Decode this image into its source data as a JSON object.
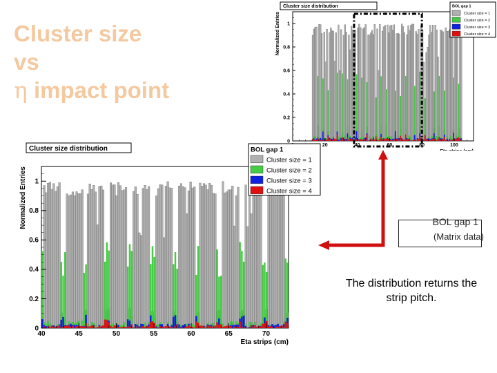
{
  "slide": {
    "title_line1": "Cluster size",
    "title_line2": "vs",
    "title_symbol": "η",
    "title_line3": " impact point",
    "note_line1": "BOL gap 1",
    "note_line2": "(Matrix data)",
    "caption": "The distribution returns the strip pitch.",
    "colors": {
      "title": "#f4c9a0",
      "arrow": "#d01010",
      "cs1": "#b0b0b0",
      "cs2": "#44cc44",
      "cs3": "#1020e0",
      "cs4": "#e01010"
    }
  },
  "chart_data": [
    {
      "id": "zoomed",
      "type": "bar",
      "title": "Cluster size distribution",
      "legend_title": "BOL gap 1",
      "legend_position": "top-right",
      "ylabel": "Normalized Entries",
      "xlabel": "Eta strips (cm)",
      "xlim": [
        40,
        73
      ],
      "ylim": [
        0,
        1.1
      ],
      "xticks": [
        "40",
        "45",
        "50",
        "55",
        "60",
        "65",
        "70"
      ],
      "yticks": [
        "0",
        "0.2",
        "0.4",
        "0.6",
        "0.8",
        "1"
      ],
      "strip_pitch_cm": 3.0,
      "strip_centers_cm": [
        41.5,
        44.5,
        47.5,
        50.5,
        53.5,
        56.5,
        59.5,
        62.5,
        65.5,
        68.5,
        71.5
      ],
      "series": [
        {
          "name": "Cluster size = 1",
          "plateau": 0.97,
          "dip": 0.6
        },
        {
          "name": "Cluster size = 2",
          "peak": 0.58
        },
        {
          "name": "Cluster size = 3",
          "peak": 0.09
        },
        {
          "name": "Cluster size = 4",
          "peak": 0.06
        }
      ]
    },
    {
      "id": "overview",
      "type": "bar",
      "title": "Cluster size distribution",
      "legend_title": "BOL gap 1",
      "legend_position": "top-right",
      "ylabel": "Normalized Entries",
      "xlabel": "Eta strips (cm)",
      "xlim": [
        0,
        112
      ],
      "ylim": [
        0,
        1.1
      ],
      "xticks": [
        "0",
        "20",
        "40",
        "60",
        "80",
        "100"
      ],
      "yticks": [
        "0",
        "0.2",
        "0.4",
        "0.6",
        "0.8",
        "1"
      ],
      "strip_pitch_cm": 3.0,
      "data_range_cm": [
        12,
        105
      ],
      "series": [
        {
          "name": "Cluster size = 1"
        },
        {
          "name": "Cluster size = 2"
        },
        {
          "name": "Cluster size = 3"
        },
        {
          "name": "Cluster size = 4"
        }
      ]
    }
  ]
}
